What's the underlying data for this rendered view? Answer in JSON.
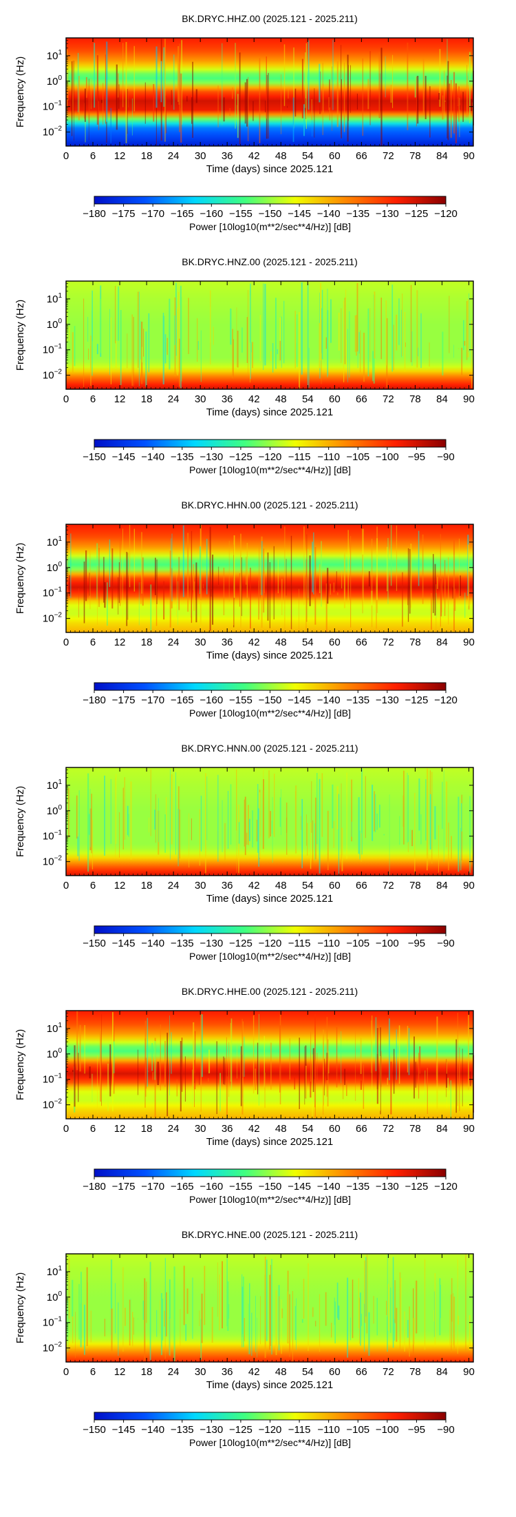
{
  "colormap": [
    "#0010c8",
    "#0050ff",
    "#00d8ff",
    "#40ff80",
    "#f0ff00",
    "#ff8800",
    "#ff2000",
    "#8a0000"
  ],
  "chart_data": [
    {
      "type": "heatmap",
      "title": "BK.DRYC.HHZ.00 (2025.121 - 2025.211)",
      "xlabel": "Time (days) since 2025.121",
      "ylabel": "Frequency (Hz)",
      "xlim": [
        0,
        91
      ],
      "ylim_log10": [
        -2.55,
        1.7
      ],
      "y_scale": "log",
      "xticks": [
        "0",
        "6",
        "12",
        "18",
        "24",
        "30",
        "36",
        "42",
        "48",
        "54",
        "60",
        "66",
        "72",
        "78",
        "84",
        "90"
      ],
      "yticks": [
        {
          "base": "10",
          "exp": "1"
        },
        {
          "base": "10",
          "exp": "0"
        },
        {
          "base": "10",
          "exp": "−1"
        },
        {
          "base": "10",
          "exp": "−2"
        }
      ],
      "colorbar": {
        "label": "Power [10log10(m**2/sec**4/Hz)] [dB]",
        "min": -180,
        "max": -120,
        "ticks": [
          "−180",
          "−175",
          "−170",
          "−165",
          "−160",
          "−155",
          "−150",
          "−145",
          "−140",
          "−135",
          "−130",
          "−125",
          "−120"
        ]
      },
      "profile": [
        {
          "log10_f": -2.55,
          "db": -178
        },
        {
          "log10_f": -2.2,
          "db": -173
        },
        {
          "log10_f": -1.8,
          "db": -168
        },
        {
          "log10_f": -1.45,
          "db": -150
        },
        {
          "log10_f": -1.2,
          "db": -128
        },
        {
          "log10_f": -0.75,
          "db": -125
        },
        {
          "log10_f": -0.35,
          "db": -134
        },
        {
          "log10_f": 0.0,
          "db": -155
        },
        {
          "log10_f": 0.3,
          "db": -152
        },
        {
          "log10_f": 0.7,
          "db": -140
        },
        {
          "log10_f": 1.2,
          "db": -132
        },
        {
          "log10_f": 1.7,
          "db": -128
        }
      ]
    },
    {
      "type": "heatmap",
      "title": "BK.DRYC.HNZ.00 (2025.121 - 2025.211)",
      "xlabel": "Time (days) since 2025.121",
      "ylabel": "Frequency (Hz)",
      "xlim": [
        0,
        91
      ],
      "ylim_log10": [
        -2.55,
        1.7
      ],
      "y_scale": "log",
      "xticks": [
        "0",
        "6",
        "12",
        "18",
        "24",
        "30",
        "36",
        "42",
        "48",
        "54",
        "60",
        "66",
        "72",
        "78",
        "84",
        "90"
      ],
      "yticks": [
        {
          "base": "10",
          "exp": "1"
        },
        {
          "base": "10",
          "exp": "0"
        },
        {
          "base": "10",
          "exp": "−1"
        },
        {
          "base": "10",
          "exp": "−2"
        }
      ],
      "colorbar": {
        "label": "Power [10log10(m**2/sec**4/Hz)] [dB]",
        "min": -150,
        "max": -90,
        "ticks": [
          "−150",
          "−145",
          "−140",
          "−135",
          "−130",
          "−125",
          "−120",
          "−115",
          "−110",
          "−105",
          "−100",
          "−95",
          "−90"
        ]
      },
      "profile": [
        {
          "log10_f": -2.55,
          "db": -95
        },
        {
          "log10_f": -2.3,
          "db": -100
        },
        {
          "log10_f": -2.0,
          "db": -108
        },
        {
          "log10_f": -1.7,
          "db": -117
        },
        {
          "log10_f": -1.4,
          "db": -120
        },
        {
          "log10_f": 0.0,
          "db": -120
        },
        {
          "log10_f": 1.0,
          "db": -119
        },
        {
          "log10_f": 1.7,
          "db": -118
        }
      ]
    },
    {
      "type": "heatmap",
      "title": "BK.DRYC.HHN.00 (2025.121 - 2025.211)",
      "xlabel": "Time (days) since 2025.121",
      "ylabel": "Frequency (Hz)",
      "xlim": [
        0,
        91
      ],
      "ylim_log10": [
        -2.55,
        1.7
      ],
      "y_scale": "log",
      "xticks": [
        "0",
        "6",
        "12",
        "18",
        "24",
        "30",
        "36",
        "42",
        "48",
        "54",
        "60",
        "66",
        "72",
        "78",
        "84",
        "90"
      ],
      "yticks": [
        {
          "base": "10",
          "exp": "1"
        },
        {
          "base": "10",
          "exp": "0"
        },
        {
          "base": "10",
          "exp": "−1"
        },
        {
          "base": "10",
          "exp": "−2"
        }
      ],
      "colorbar": {
        "label": "Power [10log10(m**2/sec**4/Hz)] [dB]",
        "min": -180,
        "max": -120,
        "ticks": [
          "−180",
          "−175",
          "−170",
          "−165",
          "−160",
          "−155",
          "−150",
          "−145",
          "−140",
          "−135",
          "−130",
          "−125",
          "−120"
        ]
      },
      "profile": [
        {
          "log10_f": -2.55,
          "db": -140
        },
        {
          "log10_f": -2.2,
          "db": -143
        },
        {
          "log10_f": -1.8,
          "db": -148
        },
        {
          "log10_f": -1.4,
          "db": -146
        },
        {
          "log10_f": -1.1,
          "db": -132
        },
        {
          "log10_f": -0.75,
          "db": -125
        },
        {
          "log10_f": -0.35,
          "db": -134
        },
        {
          "log10_f": 0.0,
          "db": -155
        },
        {
          "log10_f": 0.3,
          "db": -152
        },
        {
          "log10_f": 0.7,
          "db": -140
        },
        {
          "log10_f": 1.2,
          "db": -132
        },
        {
          "log10_f": 1.7,
          "db": -128
        }
      ]
    },
    {
      "type": "heatmap",
      "title": "BK.DRYC.HNN.00 (2025.121 - 2025.211)",
      "xlabel": "Time (days) since 2025.121",
      "ylabel": "Frequency (Hz)",
      "xlim": [
        0,
        91
      ],
      "ylim_log10": [
        -2.55,
        1.7
      ],
      "y_scale": "log",
      "xticks": [
        "0",
        "6",
        "12",
        "18",
        "24",
        "30",
        "36",
        "42",
        "48",
        "54",
        "60",
        "66",
        "72",
        "78",
        "84",
        "90"
      ],
      "yticks": [
        {
          "base": "10",
          "exp": "1"
        },
        {
          "base": "10",
          "exp": "0"
        },
        {
          "base": "10",
          "exp": "−1"
        },
        {
          "base": "10",
          "exp": "−2"
        }
      ],
      "colorbar": {
        "label": "Power [10log10(m**2/sec**4/Hz)] [dB]",
        "min": -150,
        "max": -90,
        "ticks": [
          "−150",
          "−145",
          "−140",
          "−135",
          "−130",
          "−125",
          "−120",
          "−115",
          "−110",
          "−105",
          "−100",
          "−95",
          "−90"
        ]
      },
      "profile": [
        {
          "log10_f": -2.55,
          "db": -96
        },
        {
          "log10_f": -2.3,
          "db": -101
        },
        {
          "log10_f": -2.0,
          "db": -109
        },
        {
          "log10_f": -1.7,
          "db": -117
        },
        {
          "log10_f": -1.4,
          "db": -120
        },
        {
          "log10_f": 0.0,
          "db": -120
        },
        {
          "log10_f": 1.0,
          "db": -119
        },
        {
          "log10_f": 1.7,
          "db": -118
        }
      ]
    },
    {
      "type": "heatmap",
      "title": "BK.DRYC.HHE.00 (2025.121 - 2025.211)",
      "xlabel": "Time (days) since 2025.121",
      "ylabel": "Frequency (Hz)",
      "xlim": [
        0,
        91
      ],
      "ylim_log10": [
        -2.55,
        1.7
      ],
      "y_scale": "log",
      "xticks": [
        "0",
        "6",
        "12",
        "18",
        "24",
        "30",
        "36",
        "42",
        "48",
        "54",
        "60",
        "66",
        "72",
        "78",
        "84",
        "90"
      ],
      "yticks": [
        {
          "base": "10",
          "exp": "1"
        },
        {
          "base": "10",
          "exp": "0"
        },
        {
          "base": "10",
          "exp": "−1"
        },
        {
          "base": "10",
          "exp": "−2"
        }
      ],
      "colorbar": {
        "label": "Power [10log10(m**2/sec**4/Hz)] [dB]",
        "min": -180,
        "max": -120,
        "ticks": [
          "−180",
          "−175",
          "−170",
          "−165",
          "−160",
          "−155",
          "−150",
          "−145",
          "−140",
          "−135",
          "−130",
          "−125",
          "−120"
        ]
      },
      "profile": [
        {
          "log10_f": -2.55,
          "db": -140
        },
        {
          "log10_f": -2.2,
          "db": -143
        },
        {
          "log10_f": -1.8,
          "db": -148
        },
        {
          "log10_f": -1.4,
          "db": -146
        },
        {
          "log10_f": -1.1,
          "db": -132
        },
        {
          "log10_f": -0.75,
          "db": -125
        },
        {
          "log10_f": -0.35,
          "db": -134
        },
        {
          "log10_f": 0.0,
          "db": -155
        },
        {
          "log10_f": 0.3,
          "db": -152
        },
        {
          "log10_f": 0.7,
          "db": -140
        },
        {
          "log10_f": 1.2,
          "db": -132
        },
        {
          "log10_f": 1.7,
          "db": -128
        }
      ]
    },
    {
      "type": "heatmap",
      "title": "BK.DRYC.HNE.00 (2025.121 - 2025.211)",
      "xlabel": "Time (days) since 2025.121",
      "ylabel": "Frequency (Hz)",
      "xlim": [
        0,
        91
      ],
      "ylim_log10": [
        -2.55,
        1.7
      ],
      "y_scale": "log",
      "xticks": [
        "0",
        "6",
        "12",
        "18",
        "24",
        "30",
        "36",
        "42",
        "48",
        "54",
        "60",
        "66",
        "72",
        "78",
        "84",
        "90"
      ],
      "yticks": [
        {
          "base": "10",
          "exp": "1"
        },
        {
          "base": "10",
          "exp": "0"
        },
        {
          "base": "10",
          "exp": "−1"
        },
        {
          "base": "10",
          "exp": "−2"
        }
      ],
      "colorbar": {
        "label": "Power [10log10(m**2/sec**4/Hz)] [dB]",
        "min": -150,
        "max": -90,
        "ticks": [
          "−150",
          "−145",
          "−140",
          "−135",
          "−130",
          "−125",
          "−120",
          "−115",
          "−110",
          "−105",
          "−100",
          "−95",
          "−90"
        ]
      },
      "profile": [
        {
          "log10_f": -2.55,
          "db": -99
        },
        {
          "log10_f": -2.3,
          "db": -104
        },
        {
          "log10_f": -2.0,
          "db": -111
        },
        {
          "log10_f": -1.7,
          "db": -118
        },
        {
          "log10_f": -1.4,
          "db": -120
        },
        {
          "log10_f": 0.0,
          "db": -120
        },
        {
          "log10_f": 1.0,
          "db": -119
        },
        {
          "log10_f": 1.7,
          "db": -118
        }
      ]
    }
  ]
}
